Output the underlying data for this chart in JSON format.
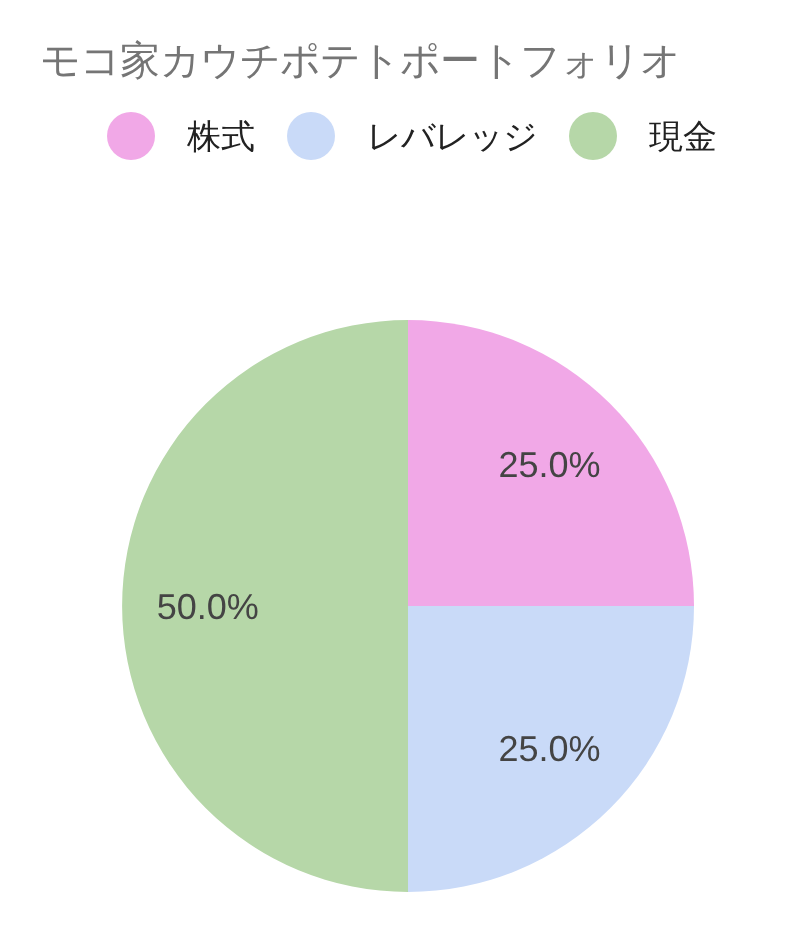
{
  "chart_data": {
    "type": "pie",
    "title": "モコ家カウチポテトポートフォリオ",
    "categories": [
      "株式",
      "レバレッジ",
      "現金"
    ],
    "values": [
      25,
      25,
      50
    ],
    "colors": [
      "#f1a8e7",
      "#c9daf8",
      "#b6d7a8"
    ],
    "value_labels": [
      "25.0%",
      "25.0%",
      "50.0%"
    ],
    "legend": "top"
  }
}
